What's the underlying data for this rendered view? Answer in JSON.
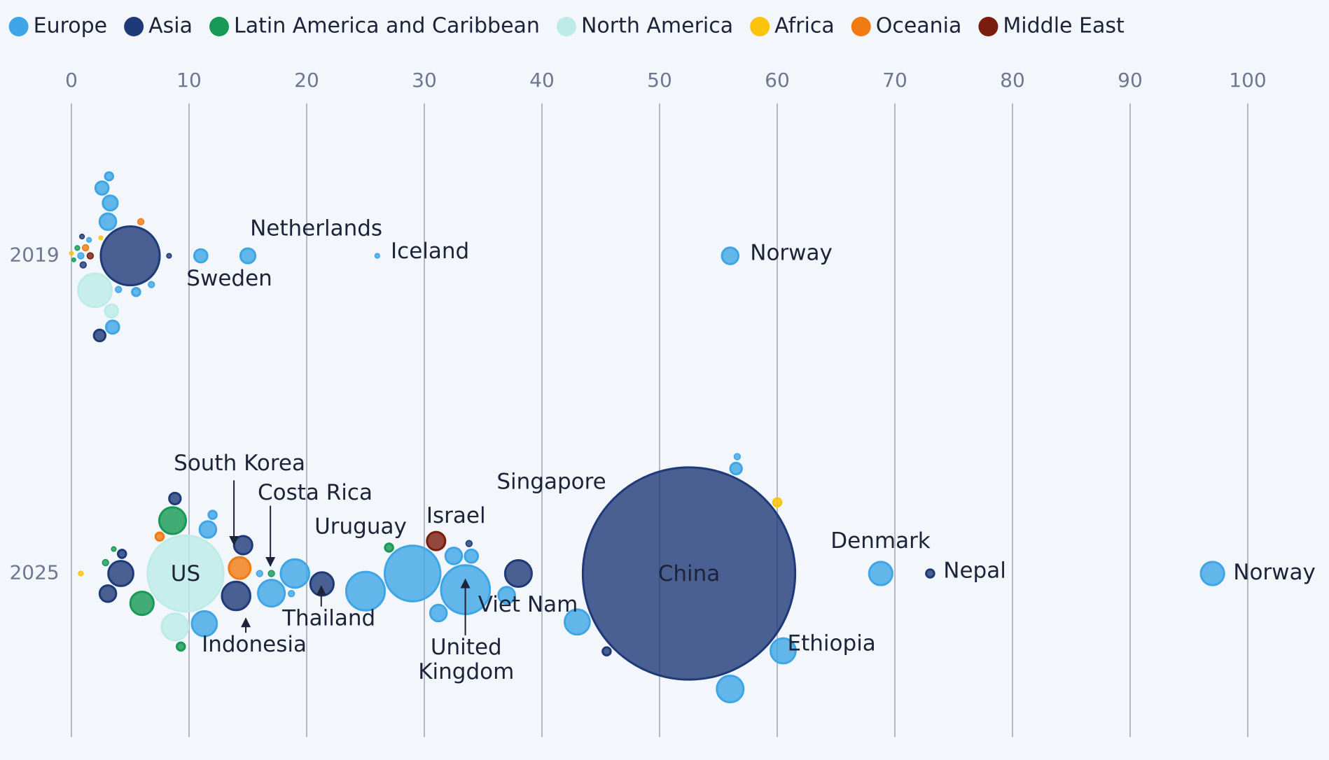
{
  "chart_data": {
    "type": "beeswarm",
    "series": [
      {
        "name": "Europe",
        "color": "#3ea6e6"
      },
      {
        "name": "Asia",
        "color": "#1f3a78"
      },
      {
        "name": "Latin America and Caribbean",
        "color": "#169a55"
      },
      {
        "name": "North America",
        "color": "#bdece8"
      },
      {
        "name": "Africa",
        "color": "#fcc30b"
      },
      {
        "name": "Oceania",
        "color": "#f27a12"
      },
      {
        "name": "Middle East",
        "color": "#7a1c0e"
      }
    ],
    "xlim": [
      0,
      100
    ],
    "xticks": [
      0,
      10,
      20,
      30,
      40,
      50,
      60,
      70,
      80,
      90,
      100
    ],
    "grid": true,
    "rows": [
      {
        "name": "2019",
        "points": [
          {
            "label": "Norway",
            "region": "Europe",
            "x": 56,
            "size": 30
          },
          {
            "label": "Iceland",
            "region": "Europe",
            "x": 26,
            "size": 4
          },
          {
            "label": "Netherlands",
            "region": "Europe",
            "x": 15,
            "size": 25
          },
          {
            "label": "Sweden",
            "region": "Europe",
            "x": 11,
            "size": 20
          },
          {
            "region": "Asia",
            "x": 5,
            "size": 324
          },
          {
            "region": "Asia",
            "x": 8.3,
            "size": 4
          },
          {
            "region": "North America",
            "x": 2,
            "size": 110
          },
          {
            "region": "North America",
            "x": 3.4,
            "size": 20
          },
          {
            "region": "Europe",
            "x": 3.2,
            "size": 9
          },
          {
            "region": "Europe",
            "x": 2.6,
            "size": 20
          },
          {
            "region": "Europe",
            "x": 3.3,
            "size": 25
          },
          {
            "region": "Europe",
            "x": 3.1,
            "size": 30
          },
          {
            "region": "Europe",
            "x": 3.5,
            "size": 20
          },
          {
            "region": "Europe",
            "x": 5.5,
            "size": 9
          },
          {
            "region": "Europe",
            "x": 6.8,
            "size": 6
          },
          {
            "region": "Europe",
            "x": 1.5,
            "size": 4
          },
          {
            "region": "Europe",
            "x": 0.8,
            "size": 6
          },
          {
            "region": "Europe",
            "x": 4,
            "size": 6
          },
          {
            "region": "Asia",
            "x": 2.4,
            "size": 16
          },
          {
            "region": "Asia",
            "x": 1,
            "size": 6
          },
          {
            "region": "Asia",
            "x": 0.9,
            "size": 4
          },
          {
            "region": "Latin America and Caribbean",
            "x": 0.5,
            "size": 4
          },
          {
            "region": "Latin America and Caribbean",
            "x": 0.2,
            "size": 3
          },
          {
            "region": "Oceania",
            "x": 1.2,
            "size": 6
          },
          {
            "region": "Oceania",
            "x": 5.9,
            "size": 6
          },
          {
            "region": "Africa",
            "x": 0,
            "size": 3
          },
          {
            "region": "Africa",
            "x": 2.5,
            "size": 3
          },
          {
            "region": "Middle East",
            "x": 1.6,
            "size": 6
          }
        ]
      },
      {
        "name": "2025",
        "points": [
          {
            "label": "Norway",
            "region": "Europe",
            "x": 97,
            "size": 56
          },
          {
            "label": "Denmark",
            "region": "Europe",
            "x": 68.8,
            "size": 56
          },
          {
            "label": "Nepal",
            "region": "Asia",
            "x": 73,
            "size": 9
          },
          {
            "label": "Ethiopia",
            "region": "Africa",
            "x": 60,
            "size": 9
          },
          {
            "label": "Singapore",
            "region": "Asia",
            "x": 45.5,
            "size": 9
          },
          {
            "label": "United Kingdom",
            "region": "Europe",
            "x": 33.5,
            "size": 225
          },
          {
            "label": "Viet Nam",
            "region": "Asia",
            "x": 33.8,
            "size": 6
          },
          {
            "label": "Israel",
            "region": "Middle East",
            "x": 31,
            "size": 36
          },
          {
            "label": "Uruguay",
            "region": "Latin America and Caribbean",
            "x": 27,
            "size": 9
          },
          {
            "label": "Thailand",
            "region": "Asia",
            "x": 21.3,
            "size": 56
          },
          {
            "label": "Costa Rica",
            "region": "Latin America and Caribbean",
            "x": 17,
            "size": 6
          },
          {
            "label": "South Korea",
            "region": "Asia",
            "x": 14,
            "size": 81
          },
          {
            "label": "Indonesia",
            "region": "Asia",
            "x": 14.6,
            "size": 36
          },
          {
            "label": "US",
            "region": "North America",
            "x": 9.7,
            "size": 530
          },
          {
            "label": "China",
            "region": "Asia",
            "x": 52.5,
            "size": 4000
          },
          {
            "region": "Europe",
            "x": 56,
            "size": 72
          },
          {
            "region": "Europe",
            "x": 60.5,
            "size": 64
          },
          {
            "region": "Europe",
            "x": 56.5,
            "size": 16
          },
          {
            "region": "Europe",
            "x": 56.6,
            "size": 6
          },
          {
            "region": "Europe",
            "x": 43,
            "size": 64
          },
          {
            "region": "Asia",
            "x": 38,
            "size": 72
          },
          {
            "region": "Europe",
            "x": 37,
            "size": 30
          },
          {
            "region": "Europe",
            "x": 29,
            "size": 290
          },
          {
            "region": "Europe",
            "x": 25,
            "size": 144
          },
          {
            "region": "Europe",
            "x": 32.5,
            "size": 30
          },
          {
            "region": "Europe",
            "x": 34,
            "size": 20
          },
          {
            "region": "Europe",
            "x": 31.2,
            "size": 30
          },
          {
            "region": "Europe",
            "x": 19,
            "size": 81
          },
          {
            "region": "Europe",
            "x": 17,
            "size": 72
          },
          {
            "region": "Europe",
            "x": 18.7,
            "size": 6
          },
          {
            "region": "Oceania",
            "x": 14.3,
            "size": 49
          },
          {
            "region": "Europe",
            "x": 11.3,
            "size": 64
          },
          {
            "region": "Europe",
            "x": 11.6,
            "size": 30
          },
          {
            "region": "North America",
            "x": 8.8,
            "size": 72
          },
          {
            "region": "Latin America and Caribbean",
            "x": 8.6,
            "size": 72
          },
          {
            "region": "Latin America and Caribbean",
            "x": 6,
            "size": 56
          },
          {
            "region": "Asia",
            "x": 4.2,
            "size": 64
          },
          {
            "region": "Asia",
            "x": 3.1,
            "size": 30
          },
          {
            "region": "Asia",
            "x": 4.3,
            "size": 9
          },
          {
            "region": "Latin America and Caribbean",
            "x": 9.3,
            "size": 9
          },
          {
            "region": "Oceania",
            "x": 7.5,
            "size": 9
          },
          {
            "region": "Asia",
            "x": 8.8,
            "size": 16
          },
          {
            "region": "Africa",
            "x": 0.8,
            "size": 4
          },
          {
            "region": "Latin America and Caribbean",
            "x": 2.9,
            "size": 6
          },
          {
            "region": "Latin America and Caribbean",
            "x": 3.6,
            "size": 4
          },
          {
            "region": "Europe",
            "x": 16,
            "size": 6
          },
          {
            "region": "Europe",
            "x": 12,
            "size": 9
          }
        ]
      }
    ]
  }
}
